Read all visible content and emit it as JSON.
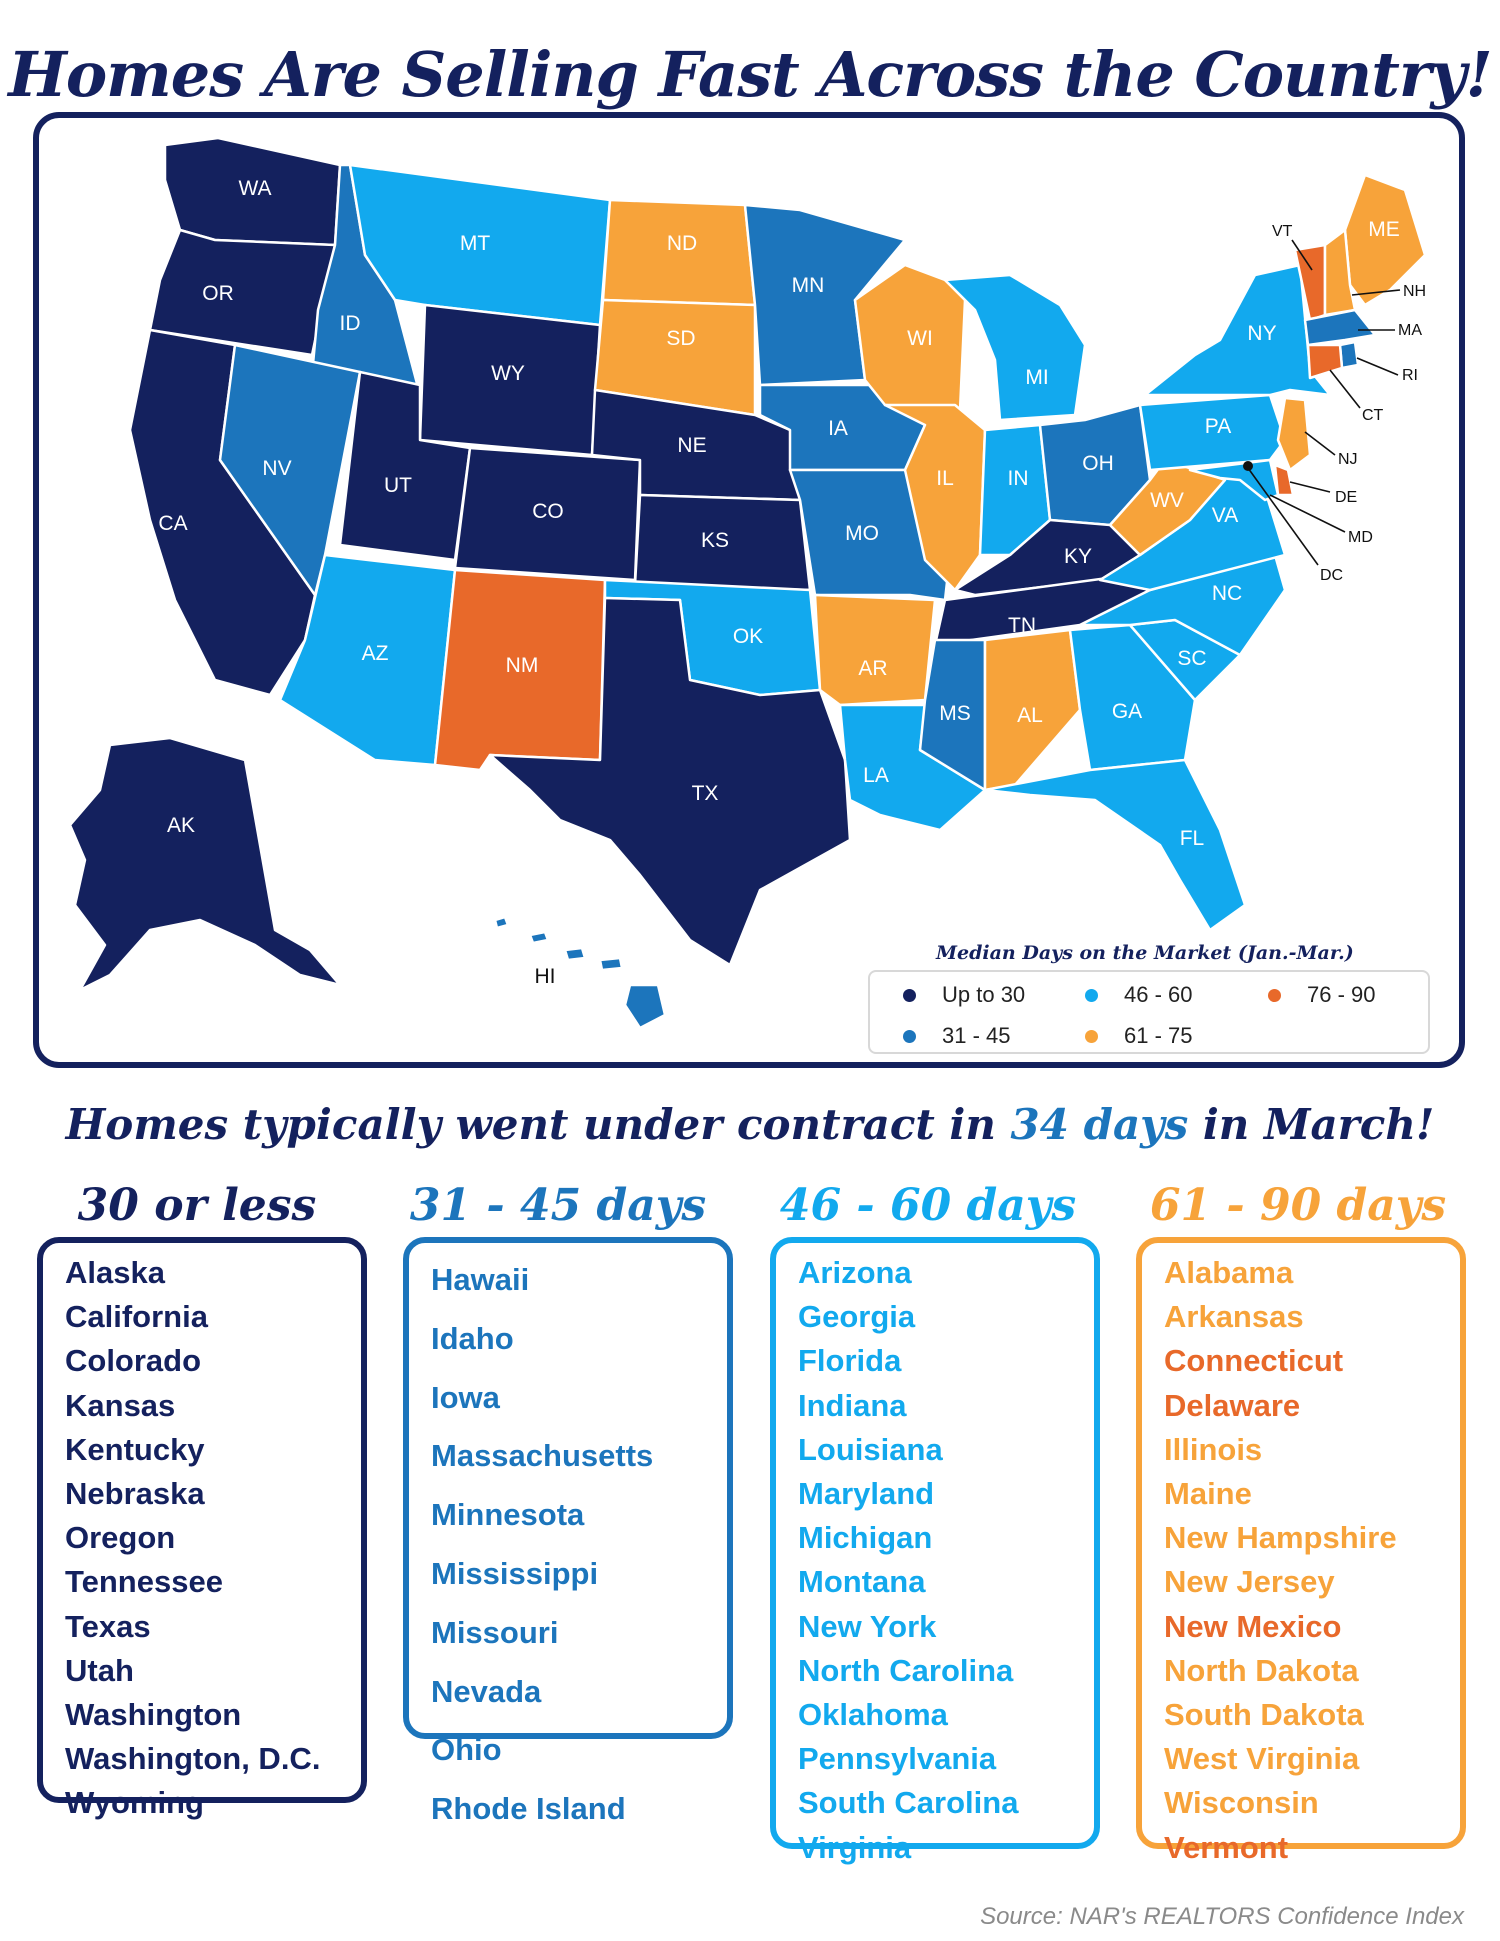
{
  "title": "Homes Are Selling Fast Across the Country!",
  "colors": {
    "navy": "#14215e",
    "mid_blue": "#1c75bc",
    "light_blue": "#12a9ee",
    "light_orange": "#f7a33a",
    "dark_orange": "#e8692a"
  },
  "map": {
    "states": {
      "WA": {
        "label": "WA",
        "bucket": "up_to_30"
      },
      "OR": {
        "label": "OR",
        "bucket": "up_to_30"
      },
      "CA": {
        "label": "CA",
        "bucket": "up_to_30"
      },
      "ID": {
        "label": "ID",
        "bucket": "31_45"
      },
      "NV": {
        "label": "NV",
        "bucket": "31_45"
      },
      "MT": {
        "label": "MT",
        "bucket": "46_60"
      },
      "WY": {
        "label": "WY",
        "bucket": "up_to_30"
      },
      "UT": {
        "label": "UT",
        "bucket": "up_to_30"
      },
      "AZ": {
        "label": "AZ",
        "bucket": "46_60"
      },
      "CO": {
        "label": "CO",
        "bucket": "up_to_30"
      },
      "NM": {
        "label": "NM",
        "bucket": "76_90"
      },
      "ND": {
        "label": "ND",
        "bucket": "61_75"
      },
      "SD": {
        "label": "SD",
        "bucket": "61_75"
      },
      "NE": {
        "label": "NE",
        "bucket": "up_to_30"
      },
      "KS": {
        "label": "KS",
        "bucket": "up_to_30"
      },
      "OK": {
        "label": "OK",
        "bucket": "46_60"
      },
      "TX": {
        "label": "TX",
        "bucket": "up_to_30"
      },
      "MN": {
        "label": "MN",
        "bucket": "31_45"
      },
      "IA": {
        "label": "IA",
        "bucket": "31_45"
      },
      "MO": {
        "label": "MO",
        "bucket": "31_45"
      },
      "AR": {
        "label": "AR",
        "bucket": "61_75"
      },
      "LA": {
        "label": "LA",
        "bucket": "46_60"
      },
      "WI": {
        "label": "WI",
        "bucket": "61_75"
      },
      "IL": {
        "label": "IL",
        "bucket": "61_75"
      },
      "MI": {
        "label": "MI",
        "bucket": "46_60"
      },
      "IN": {
        "label": "IN",
        "bucket": "46_60"
      },
      "OH": {
        "label": "OH",
        "bucket": "31_45"
      },
      "KY": {
        "label": "KY",
        "bucket": "up_to_30"
      },
      "TN": {
        "label": "TN",
        "bucket": "up_to_30"
      },
      "MS": {
        "label": "MS",
        "bucket": "31_45"
      },
      "AL": {
        "label": "AL",
        "bucket": "61_75"
      },
      "GA": {
        "label": "GA",
        "bucket": "46_60"
      },
      "FL": {
        "label": "FL",
        "bucket": "46_60"
      },
      "SC": {
        "label": "SC",
        "bucket": "46_60"
      },
      "NC": {
        "label": "NC",
        "bucket": "46_60"
      },
      "VA": {
        "label": "VA",
        "bucket": "46_60"
      },
      "WV": {
        "label": "WV",
        "bucket": "61_75"
      },
      "PA": {
        "label": "PA",
        "bucket": "46_60"
      },
      "NY": {
        "label": "NY",
        "bucket": "46_60"
      },
      "ME": {
        "label": "ME",
        "bucket": "61_75"
      },
      "AK": {
        "label": "AK",
        "bucket": "up_to_30"
      },
      "HI": {
        "label": "HI",
        "bucket": "31_45"
      }
    },
    "callouts": {
      "VT": "VT",
      "NH": "NH",
      "MA": "MA",
      "RI": "RI",
      "CT": "CT",
      "NJ": "NJ",
      "DE": "DE",
      "MD": "MD",
      "DC": "DC"
    }
  },
  "legend": {
    "title": "Median Days on the Market (Jan.-Mar.)",
    "items": [
      {
        "label": "Up to 30",
        "color": "#14215e"
      },
      {
        "label": "31 - 45",
        "color": "#1c75bc"
      },
      {
        "label": "46 - 60",
        "color": "#12a9ee"
      },
      {
        "label": "61 - 75",
        "color": "#f7a33a"
      },
      {
        "label": "76 - 90",
        "color": "#e8692a"
      }
    ]
  },
  "subtitle": {
    "before": "Homes typically went under contract in ",
    "highlight": "34 days",
    "after": " in March!"
  },
  "columns": [
    {
      "heading": "30 or less",
      "color": "#14215e",
      "items": [
        {
          "name": "Alaska"
        },
        {
          "name": "California"
        },
        {
          "name": "Colorado"
        },
        {
          "name": "Kansas"
        },
        {
          "name": "Kentucky"
        },
        {
          "name": "Nebraska"
        },
        {
          "name": "Oregon"
        },
        {
          "name": "Tennessee"
        },
        {
          "name": "Texas"
        },
        {
          "name": "Utah"
        },
        {
          "name": "Washington"
        },
        {
          "name": "Washington, D.C."
        },
        {
          "name": "Wyoming"
        }
      ]
    },
    {
      "heading": "31 - 45 days",
      "color": "#1c75bc",
      "items": [
        {
          "name": "Hawaii"
        },
        {
          "name": "Idaho"
        },
        {
          "name": "Iowa"
        },
        {
          "name": "Massachusetts"
        },
        {
          "name": "Minnesota"
        },
        {
          "name": "Mississippi"
        },
        {
          "name": "Missouri"
        },
        {
          "name": "Nevada"
        },
        {
          "name": "Ohio"
        },
        {
          "name": "Rhode Island"
        }
      ]
    },
    {
      "heading": "46 - 60 days",
      "color": "#12a9ee",
      "items": [
        {
          "name": "Arizona"
        },
        {
          "name": "Georgia"
        },
        {
          "name": "Florida"
        },
        {
          "name": "Indiana"
        },
        {
          "name": "Louisiana"
        },
        {
          "name": "Maryland"
        },
        {
          "name": "Michigan"
        },
        {
          "name": "Montana"
        },
        {
          "name": "New York"
        },
        {
          "name": "North Carolina"
        },
        {
          "name": "Oklahoma"
        },
        {
          "name": "Pennsylvania"
        },
        {
          "name": "South Carolina"
        },
        {
          "name": "Virginia"
        }
      ]
    },
    {
      "heading": "61 - 90 days",
      "color": "#f7a33a",
      "items": [
        {
          "name": "Alabama",
          "color": "#f7a33a"
        },
        {
          "name": "Arkansas",
          "color": "#f7a33a"
        },
        {
          "name": "Connecticut",
          "color": "#e8692a"
        },
        {
          "name": "Delaware",
          "color": "#e8692a"
        },
        {
          "name": "Illinois",
          "color": "#f7a33a"
        },
        {
          "name": "Maine",
          "color": "#f7a33a"
        },
        {
          "name": "New Hampshire",
          "color": "#f7a33a"
        },
        {
          "name": "New Jersey",
          "color": "#f7a33a"
        },
        {
          "name": "New Mexico",
          "color": "#e8692a"
        },
        {
          "name": "North Dakota",
          "color": "#f7a33a"
        },
        {
          "name": "South Dakota",
          "color": "#f7a33a"
        },
        {
          "name": "West Virginia",
          "color": "#f7a33a"
        },
        {
          "name": "Wisconsin",
          "color": "#f7a33a"
        },
        {
          "name": "Vermont",
          "color": "#e8692a"
        }
      ]
    }
  ],
  "source": "Source: NAR's REALTORS Confidence Index"
}
